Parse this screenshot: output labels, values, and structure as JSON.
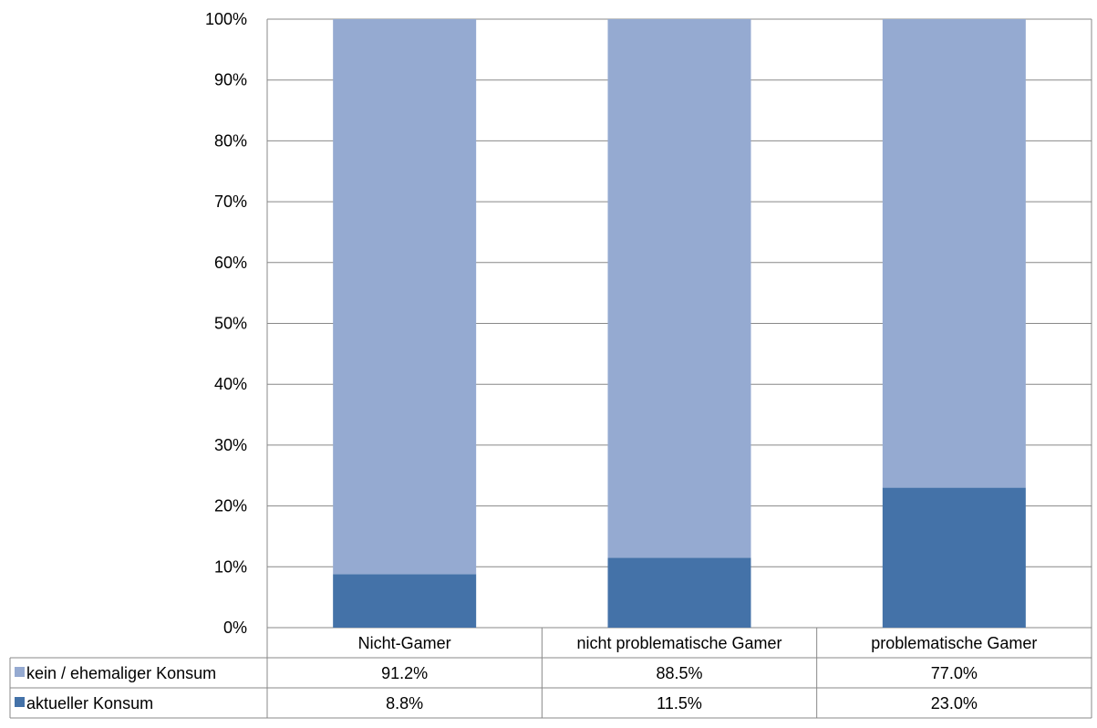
{
  "chart_data": {
    "type": "bar",
    "stacked": true,
    "percent_stacked": true,
    "categories": [
      "Nicht-Gamer",
      "nicht problematische Gamer",
      "problematische Gamer"
    ],
    "series": [
      {
        "name": "aktueller Konsum",
        "values": [
          8.8,
          11.5,
          23.0
        ],
        "labels": [
          "8.8%",
          "11.5%",
          "23.0%"
        ],
        "color": "#4472a8"
      },
      {
        "name": "kein / ehemaliger Konsum",
        "values": [
          91.2,
          88.5,
          77.0
        ],
        "labels": [
          "91.2%",
          "88.5%",
          "77.0%"
        ],
        "color": "#95aad1"
      }
    ],
    "ylim": [
      0,
      100
    ],
    "y_ticks": [
      "0%",
      "10%",
      "20%",
      "30%",
      "40%",
      "50%",
      "60%",
      "70%",
      "80%",
      "90%",
      "100%"
    ],
    "grid": true,
    "legend": "data-table-left",
    "colors": {
      "grid": "#888888",
      "border": "#888888"
    }
  }
}
